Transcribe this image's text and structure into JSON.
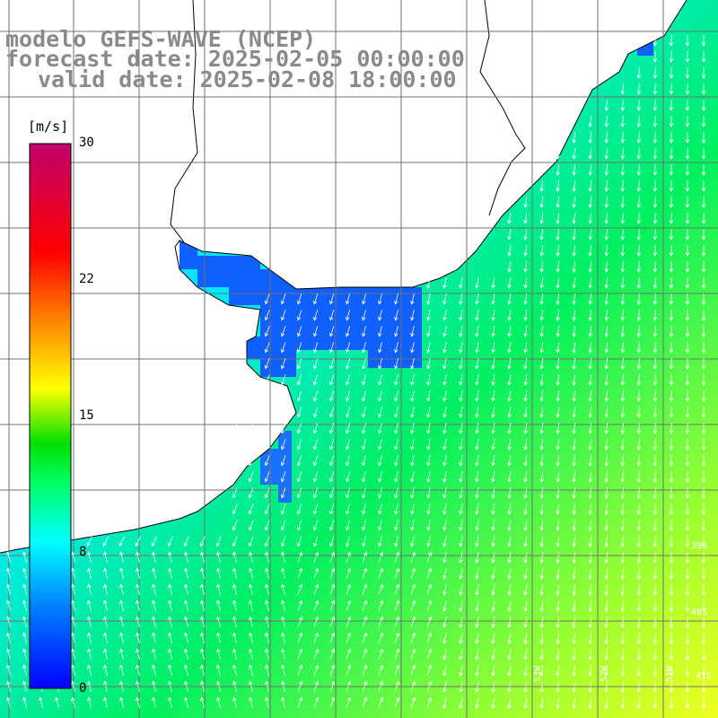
{
  "title": {
    "line1": "modelo GEFS-WAVE (NCEP)",
    "line2": "forecast date: 2025-02-05 00:00:00",
    "line3": "valid date: 2025-02-08 18:00:00"
  },
  "colorbar": {
    "unit": "[m/s]",
    "ticks": [
      {
        "label": "30",
        "value": 30
      },
      {
        "label": "22",
        "value": 22
      },
      {
        "label": "15",
        "value": 15
      },
      {
        "label": "8",
        "value": 8
      },
      {
        "label": "0",
        "value": 0
      }
    ],
    "min": 0,
    "max": 30,
    "colors": [
      "#0000ff",
      "#0080ff",
      "#00ffff",
      "#00ff60",
      "#00e000",
      "#ffff00",
      "#ff8000",
      "#ff0000",
      "#c0006a"
    ]
  },
  "lat_labels": [
    "39S",
    "40S",
    "41S"
  ],
  "lon_labels": [
    "53W",
    "52W",
    "51W"
  ],
  "map": {
    "land_color": "#ffffff",
    "gridline_color": "#707070",
    "arrow_color": "#ffffff"
  }
}
